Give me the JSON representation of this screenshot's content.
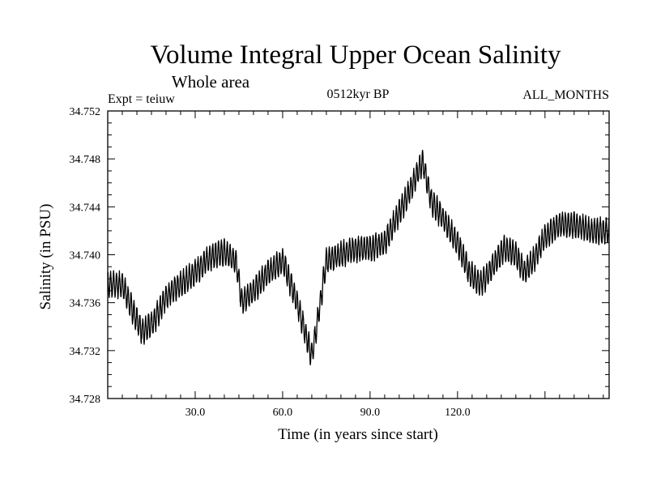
{
  "chart_data": {
    "type": "line",
    "title": "Volume Integral Upper Ocean Salinity",
    "subtitle": "Whole area",
    "experiment_label": "Expt = teiuw",
    "period_label": "0512kyr BP",
    "months_label": "ALL_MONTHS",
    "xlabel": "Time (in years since start)",
    "ylabel": "Salinity (in PSU)",
    "xlim": [
      0,
      172
    ],
    "ylim": [
      34.728,
      34.752
    ],
    "x_ticks": [
      30.0,
      60.0,
      90.0,
      120.0
    ],
    "x_tick_labels": [
      "30.0",
      "60.0",
      "90.0",
      "120.0"
    ],
    "y_ticks": [
      34.728,
      34.732,
      34.736,
      34.74,
      34.744,
      34.748,
      34.752
    ],
    "y_tick_labels": [
      "34.728",
      "34.732",
      "34.736",
      "34.740",
      "34.744",
      "34.748",
      "34.752"
    ],
    "grid": false,
    "series": [
      {
        "name": "Salinity",
        "color": "#000000",
        "baseline_x": [
          0,
          5,
          10,
          12,
          16,
          20,
          25,
          30,
          35,
          40,
          44,
          46,
          50,
          55,
          60,
          65,
          70,
          72,
          75,
          80,
          85,
          90,
          95,
          100,
          104,
          108,
          111,
          115,
          120,
          124,
          128,
          132,
          136,
          140,
          143,
          146,
          150,
          155,
          160,
          166,
          172
        ],
        "baseline_y": [
          34.7375,
          34.7375,
          34.7345,
          34.7335,
          34.7345,
          34.7365,
          34.7375,
          34.7385,
          34.7398,
          34.7402,
          34.7395,
          34.736,
          34.737,
          34.7385,
          34.7395,
          34.736,
          34.7315,
          34.7345,
          34.7395,
          34.74,
          34.7405,
          34.7405,
          34.741,
          34.7435,
          34.7455,
          34.7478,
          34.7445,
          34.743,
          34.741,
          34.7385,
          34.7375,
          34.739,
          34.7405,
          34.74,
          34.7385,
          34.7395,
          34.7415,
          34.7425,
          34.7425,
          34.742,
          34.742
        ],
        "seasonal_amplitude": 0.001,
        "noise_amplitude": 0.0004,
        "samples_per_year": 12
      }
    ]
  }
}
